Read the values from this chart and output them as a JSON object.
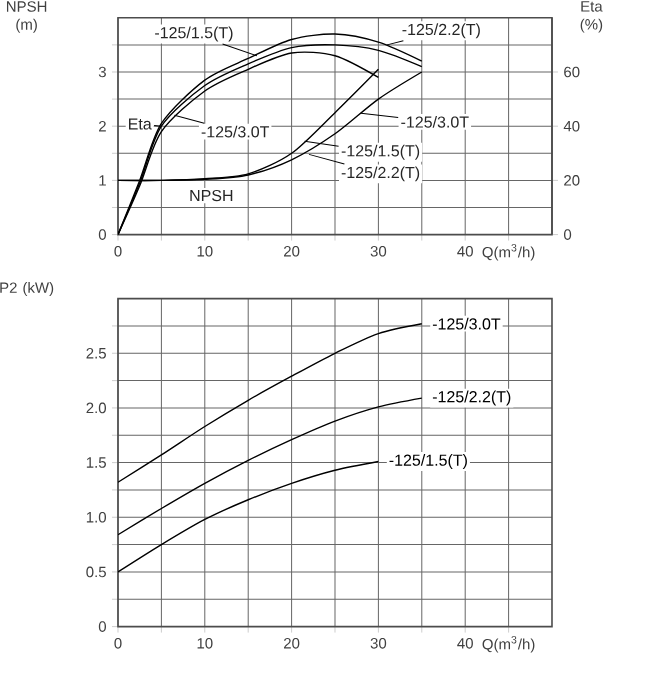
{
  "chart_data": [
    {
      "type": "line",
      "ylabel": "NPSH (m)",
      "y2label": "Eta (%)",
      "xlabel": "Q(m$^{3}$/h)",
      "grid": true,
      "xlim": [
        0,
        50
      ],
      "xticks": [
        0,
        {
          "value": 5,
          "label": null
        },
        10,
        {
          "value": 15,
          "label": null
        },
        20,
        {
          "value": 25,
          "label": null
        },
        30,
        {
          "value": 35,
          "label": null
        },
        40,
        {
          "value": 45,
          "label": null
        }
      ],
      "ylim": [
        0,
        4
      ],
      "yticks": [
        0,
        {
          "value": 0.5,
          "label": null
        },
        1,
        {
          "value": 1.5,
          "label": null
        },
        2,
        {
          "value": 2.5,
          "label": null
        },
        3,
        {
          "value": 3.5,
          "label": null
        }
      ],
      "y2lim": [
        0,
        80
      ],
      "y2ticks": [
        0,
        20,
        40,
        60
      ],
      "series": [
        {
          "color": "#000000",
          "axis": "y2",
          "x": [
            0,
            2.5,
            5,
            10,
            15,
            20,
            25,
            30,
            35
          ],
          "values": [
            0,
            20,
            41,
            57,
            65,
            72,
            74,
            71,
            64
          ]
        },
        {
          "color": "#000000",
          "axis": "y2",
          "x": [
            0,
            2.5,
            5,
            10,
            15,
            20,
            25,
            30,
            35
          ],
          "values": [
            0,
            19,
            40,
            55,
            63,
            69,
            70,
            68,
            62
          ]
        },
        {
          "color": "#000000",
          "axis": "y2",
          "x": [
            0,
            2.5,
            5,
            10,
            15,
            20,
            25,
            30
          ],
          "values": [
            0,
            18,
            38,
            53,
            61,
            67,
            66,
            58
          ]
        },
        {
          "color": "#000000",
          "x": [
            0,
            5,
            10,
            15,
            20,
            25,
            30
          ],
          "values": [
            1,
            1,
            1.03,
            1.12,
            1.5,
            2.25,
            3.05
          ]
        },
        {
          "color": "#000000",
          "x": [
            0,
            5,
            10,
            15,
            20,
            25,
            30,
            35
          ],
          "values": [
            1,
            1,
            1.02,
            1.1,
            1.38,
            1.86,
            2.5,
            3.0
          ]
        }
      ],
      "annotations": [
        "-125/1.5(T)",
        "-125/2.2(T)",
        "Eta",
        "-125/3.0T",
        "-125/3.0T",
        "-125/1.5(T)",
        "-125/2.2(T)",
        "NPSH"
      ]
    },
    {
      "type": "line",
      "ylabel": "P2 (kW)",
      "xlabel": "Q(m$^{3}$/h)",
      "grid": true,
      "xlim": [
        0,
        50
      ],
      "xticks": [
        0,
        {
          "value": 5,
          "label": null
        },
        10,
        {
          "value": 15,
          "label": null
        },
        20,
        {
          "value": 25,
          "label": null
        },
        30,
        {
          "value": 35,
          "label": null
        },
        40,
        {
          "value": 45,
          "label": null
        }
      ],
      "ylim": [
        0,
        3
      ],
      "yticks": [
        0,
        {
          "value": 0.25,
          "label": null
        },
        0.5,
        {
          "value": 0.75,
          "label": null
        },
        {
          "value": 1.0,
          "label": "1.0"
        },
        {
          "value": 1.25,
          "label": null
        },
        1.5,
        {
          "value": 1.75,
          "label": null
        },
        {
          "value": 2.0,
          "label": "2.0"
        },
        {
          "value": 2.25,
          "label": null
        },
        2.5,
        {
          "value": 2.75,
          "label": null
        }
      ],
      "series": [
        {
          "name": "-125/3.0T",
          "color": "#000000",
          "x": [
            0,
            5,
            10,
            15,
            20,
            25,
            30,
            35
          ],
          "values": [
            1.32,
            1.57,
            1.83,
            2.07,
            2.29,
            2.5,
            2.68,
            2.77
          ]
        },
        {
          "name": "-125/2.2(T)",
          "color": "#000000",
          "x": [
            0,
            5,
            10,
            15,
            20,
            25,
            30,
            35
          ],
          "values": [
            0.84,
            1.08,
            1.31,
            1.52,
            1.71,
            1.88,
            2.01,
            2.09
          ]
        },
        {
          "name": "-125/1.5(T)",
          "color": "#000000",
          "x": [
            0,
            5,
            10,
            15,
            20,
            25,
            30
          ],
          "values": [
            0.5,
            0.75,
            0.98,
            1.16,
            1.31,
            1.43,
            1.51
          ]
        }
      ]
    }
  ]
}
